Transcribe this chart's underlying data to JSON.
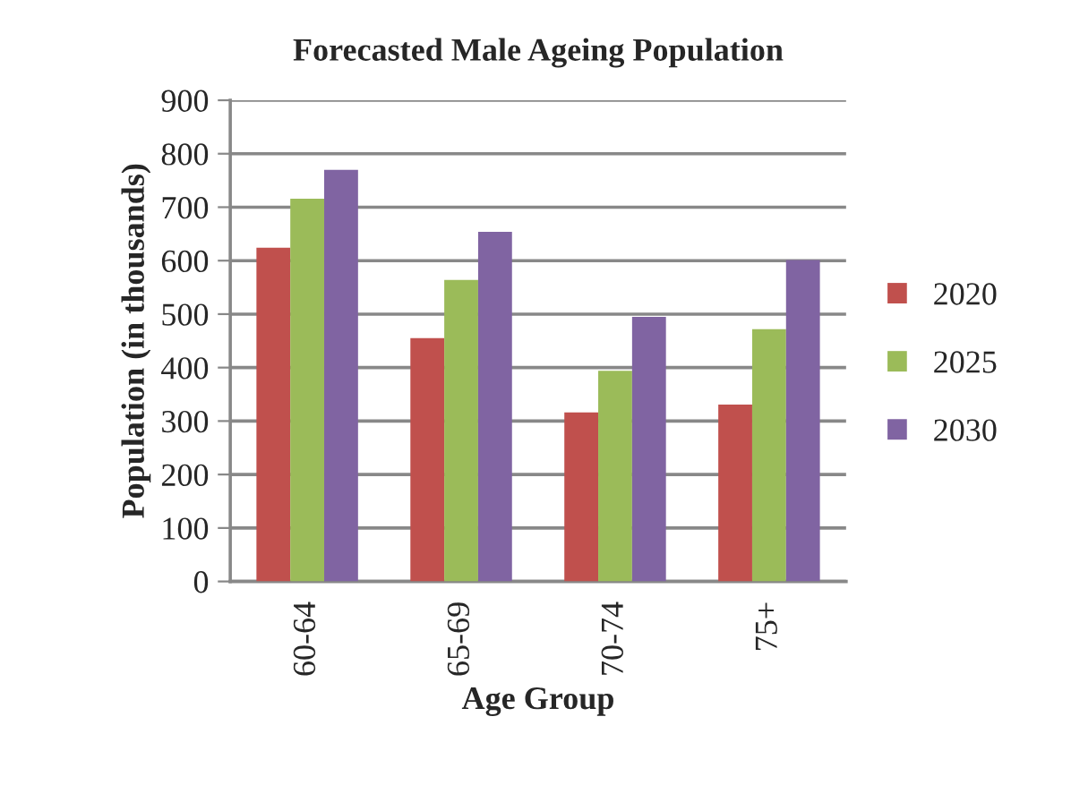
{
  "chart_data": {
    "type": "bar",
    "title": "Forecasted Male Ageing Population",
    "xlabel": "Age Group",
    "ylabel": "Population (in thousands)",
    "categories": [
      "60-64",
      "65-69",
      "70-74",
      "75+"
    ],
    "series": [
      {
        "name": "2020",
        "color": "#c0504d",
        "values": [
          624,
          455,
          316,
          331
        ]
      },
      {
        "name": "2025",
        "color": "#9bbb59",
        "values": [
          716,
          564,
          394,
          472
        ]
      },
      {
        "name": "2030",
        "color": "#8064a2",
        "values": [
          770,
          654,
          495,
          601
        ]
      }
    ],
    "ylim": [
      0,
      900
    ],
    "yticks": [
      0,
      100,
      200,
      300,
      400,
      500,
      600,
      700,
      800,
      900
    ],
    "grid": "y",
    "legend": "right"
  }
}
